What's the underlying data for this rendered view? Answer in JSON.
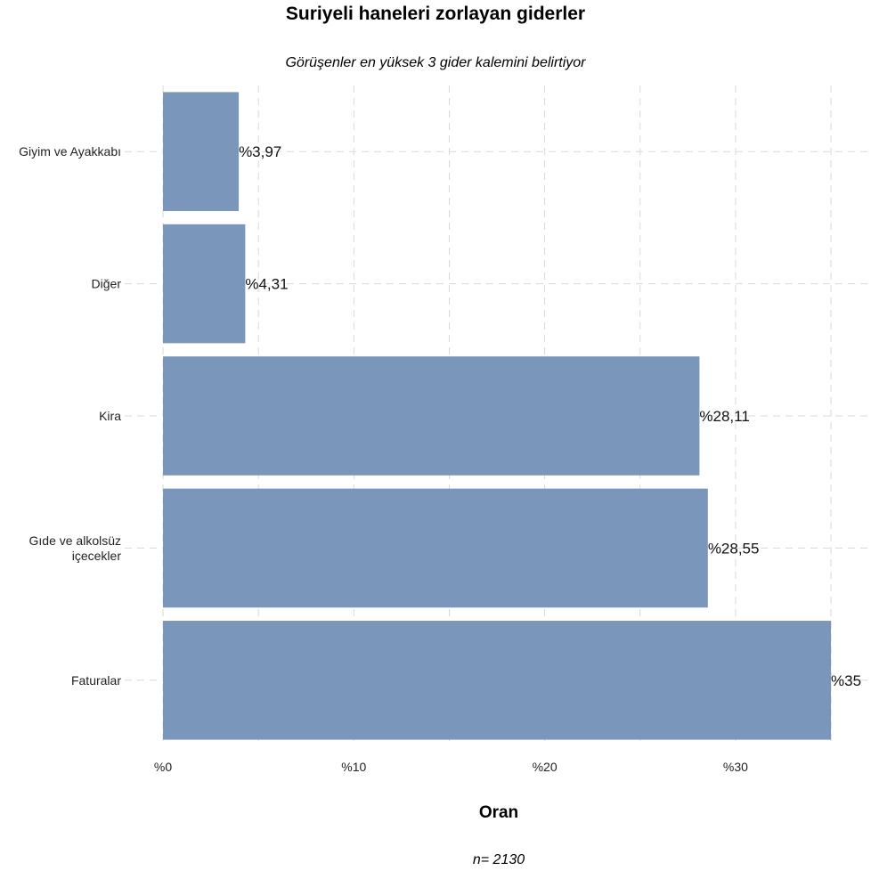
{
  "chart_data": {
    "type": "bar",
    "orientation": "horizontal",
    "title": "Suriyeli haneleri zorlayan giderler",
    "subtitle": "Görüşenler en yüksek 3 gider kalemini belirtiyor",
    "xlabel": "Oran",
    "ylabel": "",
    "caption": "n=  2130",
    "categories": [
      "Giyim ve Ayakkabı",
      "Diğer",
      "Kira",
      "Gıde ve alkolsüz içecekler",
      "Faturalar"
    ],
    "category_lines": [
      [
        "Giyim ve Ayakkabı"
      ],
      [
        "Diğer"
      ],
      [
        "Kira"
      ],
      [
        "Gıde ve alkolsüz",
        "içecekler"
      ],
      [
        "Faturalar"
      ]
    ],
    "values": [
      3.97,
      4.31,
      28.11,
      28.55,
      35
    ],
    "value_labels": [
      "%3,97",
      "%4,31",
      "%28,11",
      "%28,55",
      "%35"
    ],
    "xlim": [
      0,
      36.5
    ],
    "x_ticks": [
      0,
      10,
      20,
      30
    ],
    "x_tick_labels": [
      "%0",
      "%10",
      "%20",
      "%30"
    ],
    "bar_color": "#7b96bb",
    "grid": true,
    "grid_style": "dashed",
    "legend": "none"
  }
}
